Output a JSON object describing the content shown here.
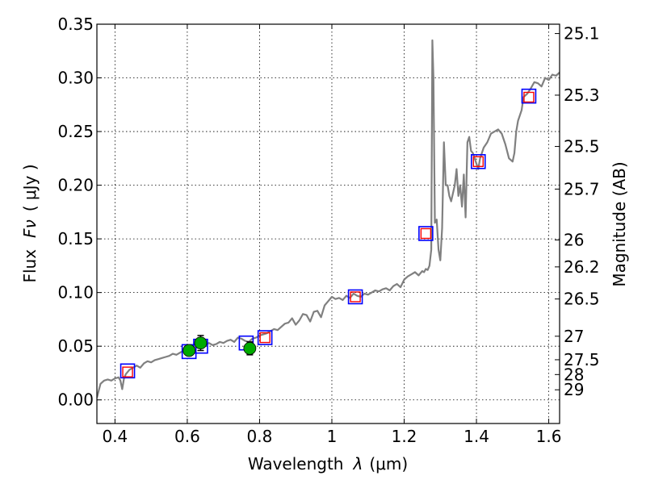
{
  "chart_data": {
    "type": "scatter",
    "xlabel_text": "Wavelength",
    "xlabel_symbol": "λ",
    "xlabel_unit": "(μm)",
    "ylabel_text": "Flux",
    "ylabel_symbol": "Fν",
    "ylabel_unit": "( μJy )",
    "y2label": "Magnitude (AB)",
    "xlim": [
      0.35,
      1.63
    ],
    "ylim": [
      -0.022,
      0.35
    ],
    "grid": true,
    "x_ticks": [
      "0.4",
      "0.6",
      "0.8",
      "1",
      "1.2",
      "1.4",
      "1.6"
    ],
    "x_tick_values": [
      0.4,
      0.6,
      0.8,
      1.0,
      1.2,
      1.4,
      1.6
    ],
    "y_ticks": [
      "0.00",
      "0.05",
      "0.10",
      "0.15",
      "0.20",
      "0.25",
      "0.30",
      "0.35"
    ],
    "y_tick_values": [
      0.0,
      0.05,
      0.1,
      0.15,
      0.2,
      0.25,
      0.3,
      0.35
    ],
    "y2_ticks": [
      "25.1",
      "25.3",
      "25.5",
      "25.7",
      "26",
      "26.2",
      "26.5",
      "27",
      "27.5",
      "28",
      "29"
    ],
    "y2_tick_flux": [
      0.3413,
      0.2839,
      0.2361,
      0.1964,
      0.149,
      0.1239,
      0.094,
      0.0593,
      0.0374,
      0.0236,
      0.0094
    ],
    "colors": {
      "model": "#808080",
      "observed": "#00aa00",
      "outer_square": "#0000ff",
      "inner_square": "#ff0000"
    },
    "series": [
      {
        "name": "model spectrum",
        "style": "line",
        "x": [
          0.35,
          0.36,
          0.37,
          0.38,
          0.39,
          0.4,
          0.41,
          0.415,
          0.42,
          0.425,
          0.43,
          0.44,
          0.45,
          0.46,
          0.47,
          0.48,
          0.49,
          0.5,
          0.51,
          0.52,
          0.53,
          0.54,
          0.55,
          0.56,
          0.57,
          0.58,
          0.59,
          0.6,
          0.61,
          0.62,
          0.63,
          0.64,
          0.65,
          0.66,
          0.67,
          0.68,
          0.69,
          0.7,
          0.71,
          0.72,
          0.73,
          0.74,
          0.75,
          0.76,
          0.77,
          0.78,
          0.79,
          0.8,
          0.81,
          0.82,
          0.83,
          0.84,
          0.85,
          0.86,
          0.87,
          0.88,
          0.89,
          0.9,
          0.91,
          0.92,
          0.93,
          0.94,
          0.95,
          0.96,
          0.97,
          0.98,
          0.99,
          1.0,
          1.01,
          1.02,
          1.03,
          1.04,
          1.05,
          1.06,
          1.07,
          1.08,
          1.09,
          1.1,
          1.11,
          1.12,
          1.13,
          1.14,
          1.15,
          1.16,
          1.17,
          1.18,
          1.19,
          1.2,
          1.21,
          1.22,
          1.23,
          1.24,
          1.25,
          1.255,
          1.26,
          1.265,
          1.27,
          1.275,
          1.278,
          1.281,
          1.285,
          1.29,
          1.295,
          1.3,
          1.305,
          1.31,
          1.315,
          1.32,
          1.325,
          1.33,
          1.34,
          1.345,
          1.35,
          1.355,
          1.36,
          1.365,
          1.37,
          1.375,
          1.38,
          1.385,
          1.39,
          1.395,
          1.4,
          1.405,
          1.41,
          1.42,
          1.43,
          1.44,
          1.45,
          1.46,
          1.47,
          1.48,
          1.49,
          1.5,
          1.505,
          1.51,
          1.515,
          1.52,
          1.525,
          1.53,
          1.54,
          1.55,
          1.56,
          1.57,
          1.58,
          1.59,
          1.6,
          1.61,
          1.62,
          1.63
        ],
        "y": [
          0.002,
          0.015,
          0.018,
          0.019,
          0.018,
          0.02,
          0.021,
          0.018,
          0.01,
          0.02,
          0.024,
          0.028,
          0.03,
          0.032,
          0.03,
          0.034,
          0.036,
          0.035,
          0.037,
          0.038,
          0.039,
          0.04,
          0.041,
          0.043,
          0.042,
          0.044,
          0.046,
          0.047,
          0.048,
          0.049,
          0.05,
          0.052,
          0.051,
          0.053,
          0.051,
          0.052,
          0.054,
          0.053,
          0.055,
          0.056,
          0.054,
          0.058,
          0.057,
          0.055,
          0.054,
          0.057,
          0.058,
          0.06,
          0.061,
          0.062,
          0.064,
          0.066,
          0.065,
          0.068,
          0.071,
          0.072,
          0.076,
          0.07,
          0.074,
          0.08,
          0.079,
          0.073,
          0.082,
          0.083,
          0.077,
          0.088,
          0.092,
          0.096,
          0.094,
          0.095,
          0.093,
          0.097,
          0.095,
          0.099,
          0.097,
          0.096,
          0.099,
          0.098,
          0.1,
          0.102,
          0.101,
          0.103,
          0.104,
          0.102,
          0.106,
          0.108,
          0.105,
          0.112,
          0.115,
          0.117,
          0.119,
          0.116,
          0.12,
          0.119,
          0.122,
          0.121,
          0.125,
          0.14,
          0.335,
          0.3,
          0.165,
          0.168,
          0.14,
          0.13,
          0.16,
          0.24,
          0.2,
          0.2,
          0.19,
          0.185,
          0.2,
          0.215,
          0.19,
          0.2,
          0.18,
          0.21,
          0.17,
          0.24,
          0.245,
          0.232,
          0.23,
          0.225,
          0.22,
          0.215,
          0.225,
          0.235,
          0.24,
          0.248,
          0.25,
          0.252,
          0.248,
          0.238,
          0.225,
          0.222,
          0.23,
          0.25,
          0.26,
          0.265,
          0.27,
          0.282,
          0.285,
          0.29,
          0.296,
          0.295,
          0.292,
          0.3,
          0.298,
          0.303,
          0.302,
          0.305
        ]
      },
      {
        "name": "observed photometry",
        "style": "points-with-errorbars",
        "x": [
          0.605,
          0.637,
          0.773
        ],
        "y": [
          0.046,
          0.053,
          0.048
        ],
        "yerr": [
          0.004,
          0.007,
          0.006
        ]
      },
      {
        "name": "model photometry (outer)",
        "style": "open-squares",
        "x": [
          0.435,
          0.605,
          0.637,
          0.763,
          0.815,
          1.065,
          1.26,
          1.405,
          1.545
        ],
        "y": [
          0.027,
          0.045,
          0.05,
          0.053,
          0.058,
          0.096,
          0.155,
          0.222,
          0.283
        ]
      },
      {
        "name": "model photometry (inner)",
        "style": "open-squares-small",
        "x": [
          0.435,
          0.815,
          1.065,
          1.26,
          1.405,
          1.545
        ],
        "y": [
          0.026,
          0.058,
          0.096,
          0.155,
          0.222,
          0.282
        ]
      }
    ]
  }
}
